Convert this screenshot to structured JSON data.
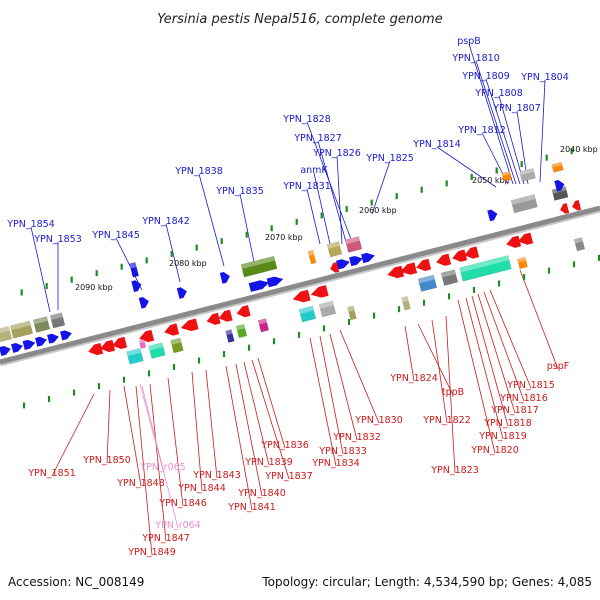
{
  "title": "Yersinia pestis Nepal516, complete genome",
  "footer": {
    "accession": "Accession: NC_008149",
    "summary": "Topology: circular; Length: 4,534,590 bp; Genes: 4,085"
  },
  "colors": {
    "backbone": "#8a8a8a",
    "forward_label": "#1a1acc",
    "reverse_label": "#cc1a1a",
    "rna_label": "#e88fd0",
    "tick": "#1f8a1f"
  },
  "scale_ticks": [
    "2040 kbp",
    "2050 kbp",
    "2060 kbp",
    "2070 kbp",
    "2080 kbp",
    "2090 kbp"
  ],
  "forward_genes": [
    "pspB",
    "YPN_1810",
    "YPN_1809",
    "YPN_1808",
    "YPN_1807",
    "YPN_1804",
    "YPN_1812",
    "YPN_1814",
    "YPN_1828",
    "YPN_1827",
    "YPN_1826",
    "YPN_1825",
    "anmK",
    "YPN_1831",
    "YPN_1838",
    "YPN_1835",
    "YPN_1842",
    "YPN_1845",
    "YPN_1854",
    "YPN_1853"
  ],
  "reverse_genes": [
    "pspF",
    "YPN_1815",
    "YPN_1816",
    "YPN_1817",
    "YPN_1818",
    "YPN_1819",
    "YPN_1820",
    "YPN_1824",
    "tppB",
    "YPN_1822",
    "YPN_1823",
    "YPN_1830",
    "YPN_1832",
    "YPN_1833",
    "YPN_1834",
    "YPN_1836",
    "YPN_1837",
    "YPN_1839",
    "YPN_1840",
    "YPN_1841",
    "YPN_1843",
    "YPN_1844",
    "YPN_1846",
    "YPN_1848",
    "YPN_1847",
    "YPN_1849",
    "YPN_1850",
    "YPN_1851"
  ],
  "rna_genes": [
    "YPN_r065",
    "YPN_r064"
  ]
}
